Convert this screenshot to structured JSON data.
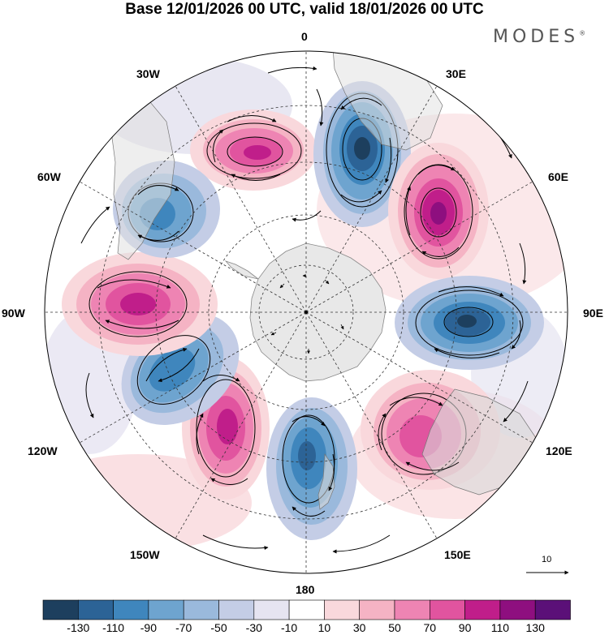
{
  "title": "Base 12/01/2026 00 UTC, valid 18/01/2026 00 UTC",
  "brand": "MODES",
  "brand_mark": "®",
  "longitudes": {
    "lon_0": "0",
    "lon_30e": "30E",
    "lon_60e": "60E",
    "lon_90e": "90E",
    "lon_120e": "120E",
    "lon_150e": "150E",
    "lon_180": "180",
    "lon_150w": "150W",
    "lon_120w": "120W",
    "lon_90w": "90W",
    "lon_60w": "60W",
    "lon_30w": "30W"
  },
  "reference_vector": "10",
  "colorbar": {
    "labels": [
      "-130",
      "-110",
      "-90",
      "-70",
      "-50",
      "-30",
      "-10",
      "10",
      "30",
      "50",
      "70",
      "90",
      "110",
      "130"
    ],
    "colors": [
      "#1d3f5e",
      "#2c6396",
      "#3f86bd",
      "#6ea4cf",
      "#9ab9dc",
      "#c4cde6",
      "#e6e4f1",
      "#ffffff",
      "#f9d8dc",
      "#f5b3c4",
      "#ee84b3",
      "#e1549f",
      "#c01e8a",
      "#8e0f7f",
      "#5b1078"
    ]
  },
  "anomalies": [
    {
      "sign": "positive",
      "lon": "20W",
      "value": 110
    },
    {
      "sign": "negative",
      "lon": "20E",
      "value": -130
    },
    {
      "sign": "positive",
      "lon": "55E",
      "value": 120
    },
    {
      "sign": "negative",
      "lon": "95E",
      "value": -130
    },
    {
      "sign": "positive",
      "lon": "140E",
      "value": 90
    },
    {
      "sign": "negative",
      "lon": "170E",
      "value": -100
    },
    {
      "sign": "positive",
      "lon": "155W",
      "value": 110
    },
    {
      "sign": "negative",
      "lon": "125W",
      "value": -90
    },
    {
      "sign": "positive",
      "lon": "95W",
      "value": 110
    },
    {
      "sign": "negative",
      "lon": "60W",
      "value": -90
    }
  ]
}
